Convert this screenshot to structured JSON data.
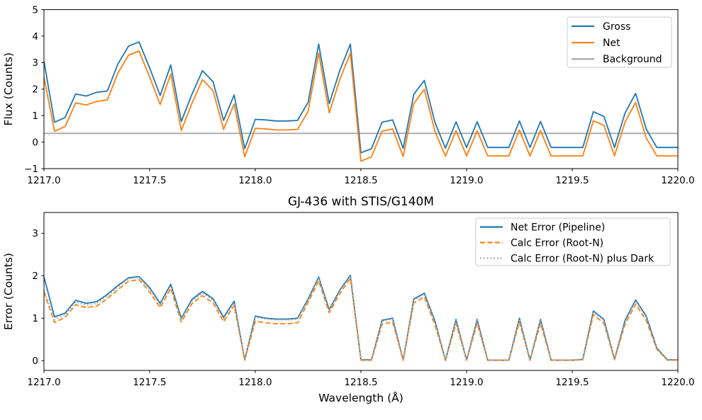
{
  "figure": {
    "title": "GJ-436 with STIS/G140M",
    "xlabel": "Wavelength (Å)"
  },
  "chart_data": [
    {
      "type": "line",
      "subplot": "flux",
      "title": "",
      "xlabel": "",
      "ylabel": "Flux (Counts)",
      "xlim": [
        1217.0,
        1220.0
      ],
      "ylim": [
        -1,
        5
      ],
      "grid": false,
      "legend_position": "upper right",
      "xticks": [
        1217.0,
        1217.5,
        1218.0,
        1218.5,
        1219.0,
        1219.5,
        1220.0
      ],
      "xtick_labels": [
        "1217.0",
        "1217.5",
        "1218.0",
        "1218.5",
        "1219.0",
        "1219.5",
        "1220.0"
      ],
      "yticks": [
        -1,
        0,
        1,
        2,
        3,
        4,
        5
      ],
      "ytick_labels": [
        "−1",
        "0",
        "1",
        "2",
        "3",
        "4",
        "5"
      ],
      "legend_order": [
        "Gross",
        "Net",
        "Background"
      ],
      "x": [
        1217.0,
        1217.05,
        1217.1,
        1217.15,
        1217.2,
        1217.25,
        1217.3,
        1217.35,
        1217.4,
        1217.45,
        1217.5,
        1217.55,
        1217.6,
        1217.65,
        1217.7,
        1217.75,
        1217.8,
        1217.85,
        1217.9,
        1217.95,
        1218.0,
        1218.05,
        1218.1,
        1218.15,
        1218.2,
        1218.25,
        1218.3,
        1218.35,
        1218.4,
        1218.45,
        1218.5,
        1218.55,
        1218.6,
        1218.65,
        1218.7,
        1218.75,
        1218.8,
        1218.85,
        1218.9,
        1218.95,
        1219.0,
        1219.05,
        1219.1,
        1219.15,
        1219.2,
        1219.25,
        1219.3,
        1219.35,
        1219.4,
        1219.45,
        1219.5,
        1219.55,
        1219.6,
        1219.65,
        1219.7,
        1219.75,
        1219.8,
        1219.85,
        1219.9,
        1219.95,
        1220.0
      ],
      "series": [
        {
          "name": "Background",
          "color": "#a9a9a9",
          "style": "solid",
          "constant": 0.33
        },
        {
          "name": "Gross",
          "color": "#1f77b4",
          "style": "solid",
          "values": [
            3.05,
            0.75,
            0.93,
            1.82,
            1.74,
            1.88,
            1.93,
            2.95,
            3.62,
            3.78,
            2.8,
            1.76,
            2.91,
            0.78,
            1.8,
            2.7,
            2.28,
            0.82,
            1.78,
            -0.25,
            0.86,
            0.84,
            0.8,
            0.8,
            0.82,
            1.5,
            3.7,
            1.45,
            2.7,
            3.7,
            -0.4,
            -0.25,
            0.75,
            0.84,
            -0.23,
            1.8,
            2.33,
            0.75,
            -0.23,
            0.77,
            -0.2,
            0.77,
            -0.2,
            -0.2,
            -0.2,
            0.8,
            -0.2,
            0.78,
            -0.2,
            -0.2,
            -0.2,
            -0.2,
            1.15,
            0.97,
            -0.2,
            1.1,
            1.84,
            0.5,
            -0.2,
            -0.2,
            -0.2
          ]
        },
        {
          "name": "Net",
          "color": "#ff7f0e",
          "style": "solid",
          "values": [
            2.45,
            0.41,
            0.59,
            1.48,
            1.4,
            1.54,
            1.59,
            2.61,
            3.28,
            3.44,
            2.46,
            1.42,
            2.57,
            0.44,
            1.46,
            2.36,
            1.94,
            0.48,
            1.44,
            -0.55,
            0.52,
            0.5,
            0.46,
            0.46,
            0.48,
            1.16,
            3.36,
            1.11,
            2.36,
            3.36,
            -0.72,
            -0.55,
            0.41,
            0.5,
            -0.54,
            1.46,
            1.99,
            0.41,
            -0.53,
            0.43,
            -0.52,
            0.43,
            -0.52,
            -0.52,
            -0.52,
            0.46,
            -0.52,
            0.44,
            -0.52,
            -0.52,
            -0.52,
            -0.52,
            0.81,
            0.63,
            -0.52,
            0.76,
            1.5,
            0.16,
            -0.52,
            -0.52,
            -0.52
          ]
        }
      ]
    },
    {
      "type": "line",
      "subplot": "error",
      "title": "GJ-436 with STIS/G140M",
      "xlabel": "Wavelength (Å)",
      "ylabel": "Error (Counts)",
      "xlim": [
        1217.0,
        1220.0
      ],
      "ylim": [
        -0.23,
        3.49
      ],
      "grid": false,
      "legend_position": "upper right",
      "xticks": [
        1217.0,
        1217.5,
        1218.0,
        1218.5,
        1219.0,
        1219.5,
        1220.0
      ],
      "xtick_labels": [
        "1217.0",
        "1217.5",
        "1218.0",
        "1218.5",
        "1219.0",
        "1219.5",
        "1220.0"
      ],
      "yticks": [
        0,
        1,
        2,
        3
      ],
      "ytick_labels": [
        "0",
        "1",
        "2",
        "3"
      ],
      "legend_order": [
        "Net Error (Pipeline)",
        "Calc Error (Root-N)",
        "Calc Error (Root-N) plus Dark"
      ],
      "x": [
        1217.0,
        1217.05,
        1217.1,
        1217.15,
        1217.2,
        1217.25,
        1217.3,
        1217.35,
        1217.4,
        1217.45,
        1217.5,
        1217.55,
        1217.6,
        1217.65,
        1217.7,
        1217.75,
        1217.8,
        1217.85,
        1217.9,
        1217.95,
        1218.0,
        1218.05,
        1218.1,
        1218.15,
        1218.2,
        1218.25,
        1218.3,
        1218.35,
        1218.4,
        1218.45,
        1218.5,
        1218.55,
        1218.6,
        1218.65,
        1218.7,
        1218.75,
        1218.8,
        1218.85,
        1218.9,
        1218.95,
        1219.0,
        1219.05,
        1219.1,
        1219.15,
        1219.2,
        1219.25,
        1219.3,
        1219.35,
        1219.4,
        1219.45,
        1219.5,
        1219.55,
        1219.6,
        1219.65,
        1219.7,
        1219.75,
        1219.8,
        1219.85,
        1219.9,
        1219.95,
        1220.0
      ],
      "series": [
        {
          "name": "Net Error (Pipeline)",
          "color": "#1f77b4",
          "style": "solid",
          "values": [
            1.97,
            1.03,
            1.12,
            1.42,
            1.35,
            1.39,
            1.56,
            1.77,
            1.95,
            1.98,
            1.72,
            1.35,
            1.8,
            1.0,
            1.44,
            1.63,
            1.46,
            1.02,
            1.4,
            0.02,
            1.05,
            1.0,
            0.98,
            0.98,
            1.0,
            1.45,
            1.97,
            1.2,
            1.66,
            2.01,
            0.02,
            0.02,
            0.95,
            1.0,
            0.01,
            1.45,
            1.59,
            0.94,
            0.01,
            0.97,
            0.01,
            0.97,
            0.01,
            0.01,
            0.01,
            1.0,
            0.01,
            0.97,
            0.01,
            0.01,
            0.01,
            0.03,
            1.17,
            0.97,
            0.03,
            0.95,
            1.43,
            1.05,
            0.3,
            0.02,
            0.02
          ]
        },
        {
          "name": "Calc Error (Root-N)",
          "color": "#ff7f0e",
          "style": "dashed",
          "values": [
            1.62,
            0.9,
            1.02,
            1.32,
            1.25,
            1.29,
            1.46,
            1.67,
            1.87,
            1.91,
            1.62,
            1.25,
            1.7,
            0.91,
            1.34,
            1.53,
            1.36,
            0.92,
            1.3,
            0.01,
            0.93,
            0.89,
            0.87,
            0.87,
            0.89,
            1.37,
            1.88,
            1.13,
            1.58,
            1.94,
            0.01,
            0.01,
            0.86,
            0.91,
            0.01,
            1.36,
            1.5,
            0.85,
            0.01,
            0.88,
            0.01,
            0.88,
            0.01,
            0.01,
            0.01,
            0.91,
            0.01,
            0.88,
            0.01,
            0.01,
            0.01,
            0.02,
            1.08,
            0.88,
            0.02,
            0.86,
            1.33,
            0.95,
            0.27,
            0.01,
            0.01
          ]
        },
        {
          "name": "Calc Error (Root-N) plus Dark",
          "color": "#a9a9a9",
          "style": "dotted",
          "values": [
            1.66,
            0.97,
            1.07,
            1.38,
            1.31,
            1.35,
            1.52,
            1.73,
            1.93,
            1.96,
            1.68,
            1.31,
            1.76,
            0.97,
            1.4,
            1.59,
            1.42,
            0.98,
            1.36,
            0.03,
            1.02,
            0.98,
            0.96,
            0.96,
            0.98,
            1.42,
            1.95,
            1.18,
            1.64,
            1.99,
            0.03,
            0.03,
            0.93,
            0.98,
            0.02,
            1.42,
            1.56,
            0.92,
            0.02,
            0.95,
            0.02,
            0.95,
            0.02,
            0.02,
            0.02,
            0.98,
            0.02,
            0.95,
            0.02,
            0.02,
            0.02,
            0.03,
            1.14,
            0.95,
            0.03,
            0.92,
            1.4,
            1.02,
            0.28,
            0.02,
            0.02
          ]
        }
      ]
    }
  ]
}
